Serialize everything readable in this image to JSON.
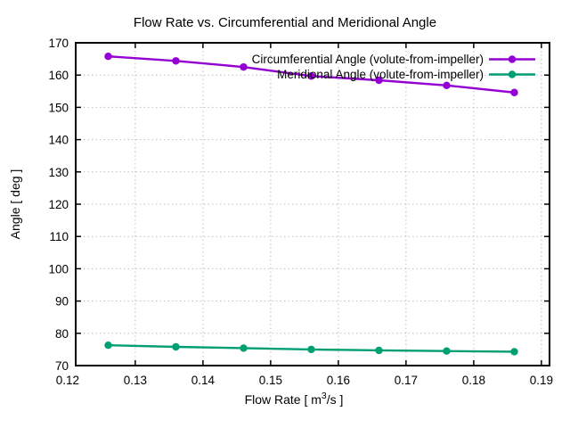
{
  "window": {
    "background": "#ffffff"
  },
  "chart_data": {
    "type": "line",
    "title": "Flow Rate vs. Circumferential and Meridional Angle",
    "xlabel": "Flow Rate [ m³/s ]",
    "ylabel": "Angle [ deg ]",
    "xlim": [
      0.1212,
      0.1912
    ],
    "ylim": [
      70,
      170
    ],
    "xticks": [
      0.12,
      0.13,
      0.14,
      0.15,
      0.16,
      0.17,
      0.18,
      0.19
    ],
    "xtick_labels": [
      "0.12",
      "0.13",
      "0.14",
      "0.15",
      "0.16",
      "0.17",
      "0.18",
      "0.19"
    ],
    "yticks": [
      70,
      80,
      90,
      100,
      110,
      120,
      130,
      140,
      150,
      160,
      170
    ],
    "ytick_labels": [
      "70",
      "80",
      "90",
      "100",
      "110",
      "120",
      "130",
      "140",
      "150",
      "160",
      "170"
    ],
    "grid": true,
    "legend_position": "top-right",
    "x": [
      0.126,
      0.136,
      0.146,
      0.156,
      0.166,
      0.176,
      0.186
    ],
    "series": [
      {
        "name": "Circumferential Angle (volute-from-impeller)",
        "color": "#9400d3",
        "marker": "circle",
        "values": [
          165.8,
          164.4,
          162.5,
          159.7,
          158.4,
          156.8,
          154.6
        ]
      },
      {
        "name": "Meridional Angle (volute-from-impeller)",
        "color": "#009e73",
        "marker": "circle",
        "values": [
          76.3,
          75.8,
          75.4,
          75.0,
          74.7,
          74.5,
          74.3
        ]
      }
    ],
    "colors": {
      "axis": "#000000",
      "grid": "#c0c0c0",
      "text": "#000000"
    }
  }
}
